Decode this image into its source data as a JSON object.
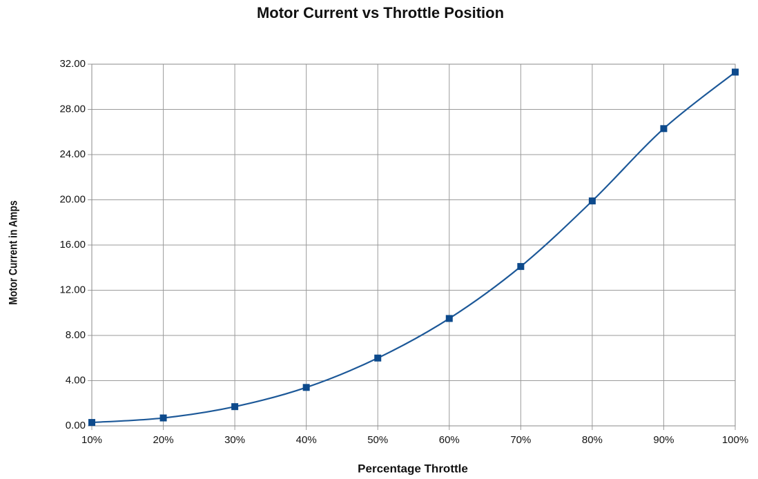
{
  "chart_data": {
    "type": "line",
    "title": "Motor Current vs Throttle Position",
    "x_label": "Percentage Throttle",
    "y_label": "Motor Current in Amps",
    "x": [
      10,
      20,
      30,
      40,
      50,
      60,
      70,
      80,
      90,
      100
    ],
    "series": [
      {
        "name": "Motor Current",
        "color": "#1c5898",
        "values": [
          0.3,
          0.7,
          1.7,
          3.4,
          6.0,
          9.5,
          14.1,
          19.9,
          26.3,
          31.3
        ]
      }
    ],
    "xlim": [
      10,
      100
    ],
    "xticks": [
      {
        "value": 10,
        "label": "10%"
      },
      {
        "value": 20,
        "label": "20%"
      },
      {
        "value": 30,
        "label": "30%"
      },
      {
        "value": 40,
        "label": "40%"
      },
      {
        "value": 50,
        "label": "50%"
      },
      {
        "value": 60,
        "label": "60%"
      },
      {
        "value": 70,
        "label": "70%"
      },
      {
        "value": 80,
        "label": "80%"
      },
      {
        "value": 90,
        "label": "90%"
      },
      {
        "value": 100,
        "label": "100%"
      }
    ],
    "ylim": [
      0,
      32
    ],
    "yticks": [
      {
        "value": 0,
        "label": "0.00"
      },
      {
        "value": 4,
        "label": "4.00"
      },
      {
        "value": 8,
        "label": "8.00"
      },
      {
        "value": 12,
        "label": "12.00"
      },
      {
        "value": 16,
        "label": "16.00"
      },
      {
        "value": 20,
        "label": "20.00"
      },
      {
        "value": 24,
        "label": "24.00"
      },
      {
        "value": 28,
        "label": "28.00"
      },
      {
        "value": 32,
        "label": "32.00"
      }
    ],
    "grid": true,
    "smooth": true,
    "marker": "square"
  }
}
